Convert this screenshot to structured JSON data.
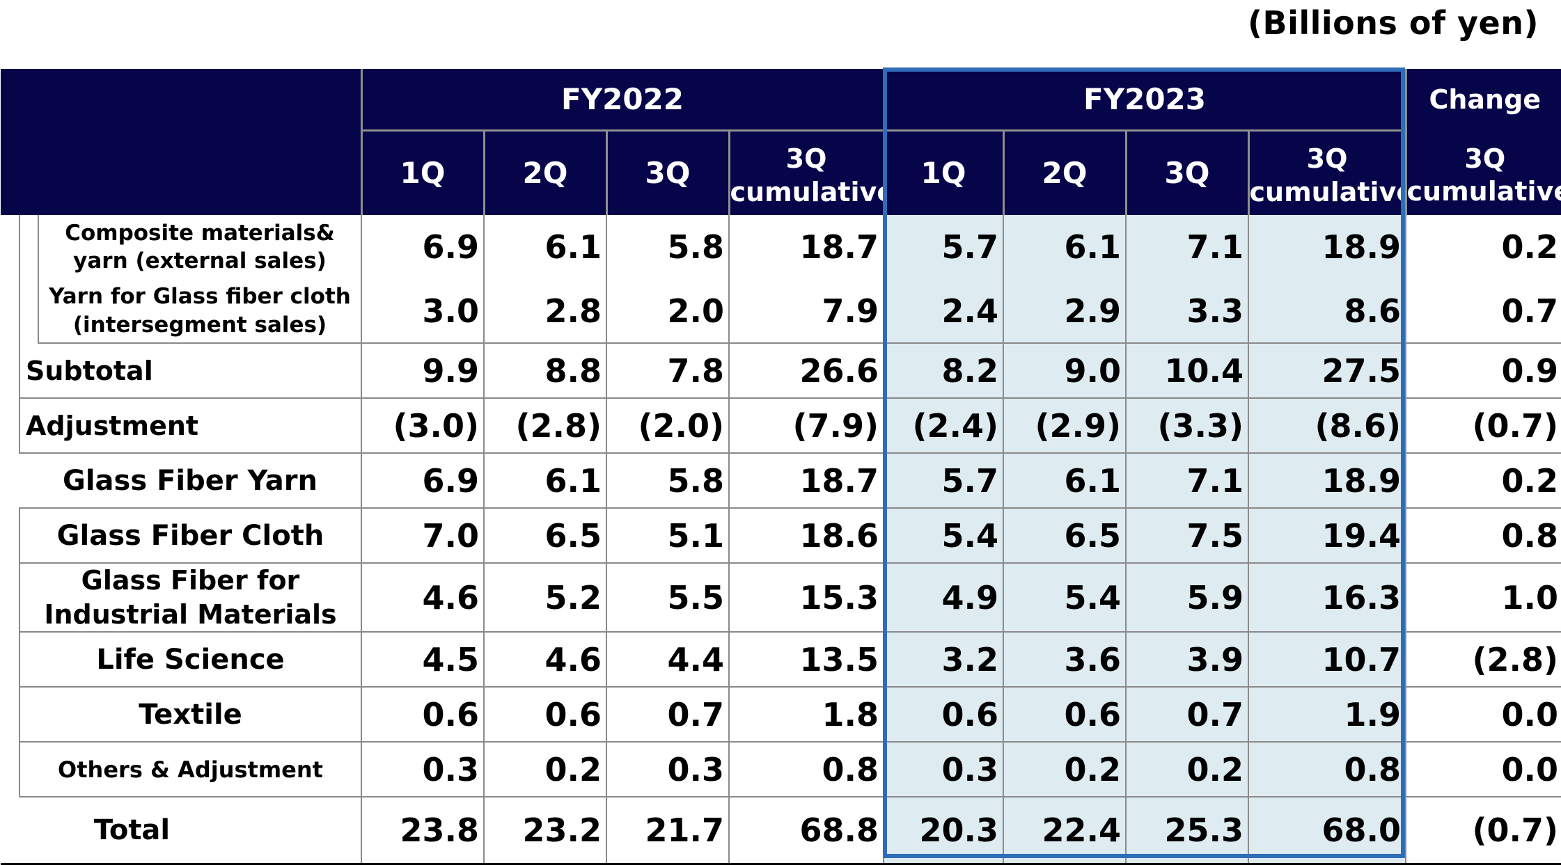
{
  "unit_note": "(Billions of yen)",
  "header": {
    "fy2022": "FY2022",
    "fy2023": "FY2023",
    "change": "Change",
    "q1": "1Q",
    "q2": "2Q",
    "q3": "3Q",
    "cum_line1": "3Q",
    "cum_line2": "cumulative"
  },
  "rows": [
    {
      "label_line1": "Composite materials&",
      "label_line2": "yarn (external sales)",
      "values": [
        "6.9",
        "6.1",
        "5.8",
        "18.7",
        "5.7",
        "6.1",
        "7.1",
        "18.9",
        "0.2"
      ]
    },
    {
      "label_line1": "Yarn for Glass fiber cloth",
      "label_line2": "(intersegment sales)",
      "values": [
        "3.0",
        "2.8",
        "2.0",
        "7.9",
        "2.4",
        "2.9",
        "3.3",
        "8.6",
        "0.7"
      ]
    },
    {
      "label": "Subtotal",
      "values": [
        "9.9",
        "8.8",
        "7.8",
        "26.6",
        "8.2",
        "9.0",
        "10.4",
        "27.5",
        "0.9"
      ]
    },
    {
      "label": "Adjustment",
      "values": [
        "(3.0)",
        "(2.8)",
        "(2.0)",
        "(7.9)",
        "(2.4)",
        "(2.9)",
        "(3.3)",
        "(8.6)",
        "(0.7)"
      ]
    },
    {
      "label": "Glass Fiber Yarn",
      "values": [
        "6.9",
        "6.1",
        "5.8",
        "18.7",
        "5.7",
        "6.1",
        "7.1",
        "18.9",
        "0.2"
      ]
    },
    {
      "label": "Glass Fiber Cloth",
      "values": [
        "7.0",
        "6.5",
        "5.1",
        "18.6",
        "5.4",
        "6.5",
        "7.5",
        "19.4",
        "0.8"
      ]
    },
    {
      "label_line1": "Glass Fiber for",
      "label_line2": "Industrial Materials",
      "values": [
        "4.6",
        "5.2",
        "5.5",
        "15.3",
        "4.9",
        "5.4",
        "5.9",
        "16.3",
        "1.0"
      ]
    },
    {
      "label": "Life Science",
      "values": [
        "4.5",
        "4.6",
        "4.4",
        "13.5",
        "3.2",
        "3.6",
        "3.9",
        "10.7",
        "(2.8)"
      ]
    },
    {
      "label": "Textile",
      "values": [
        "0.6",
        "0.6",
        "0.7",
        "1.8",
        "0.6",
        "0.6",
        "0.7",
        "1.9",
        "0.0"
      ]
    },
    {
      "label": "Others & Adjustment",
      "values": [
        "0.3",
        "0.2",
        "0.3",
        "0.8",
        "0.3",
        "0.2",
        "0.2",
        "0.8",
        "0.0"
      ]
    },
    {
      "label": "Total",
      "values": [
        "23.8",
        "23.2",
        "21.7",
        "68.8",
        "20.3",
        "22.4",
        "25.3",
        "68.0",
        "(0.7)"
      ]
    }
  ]
}
